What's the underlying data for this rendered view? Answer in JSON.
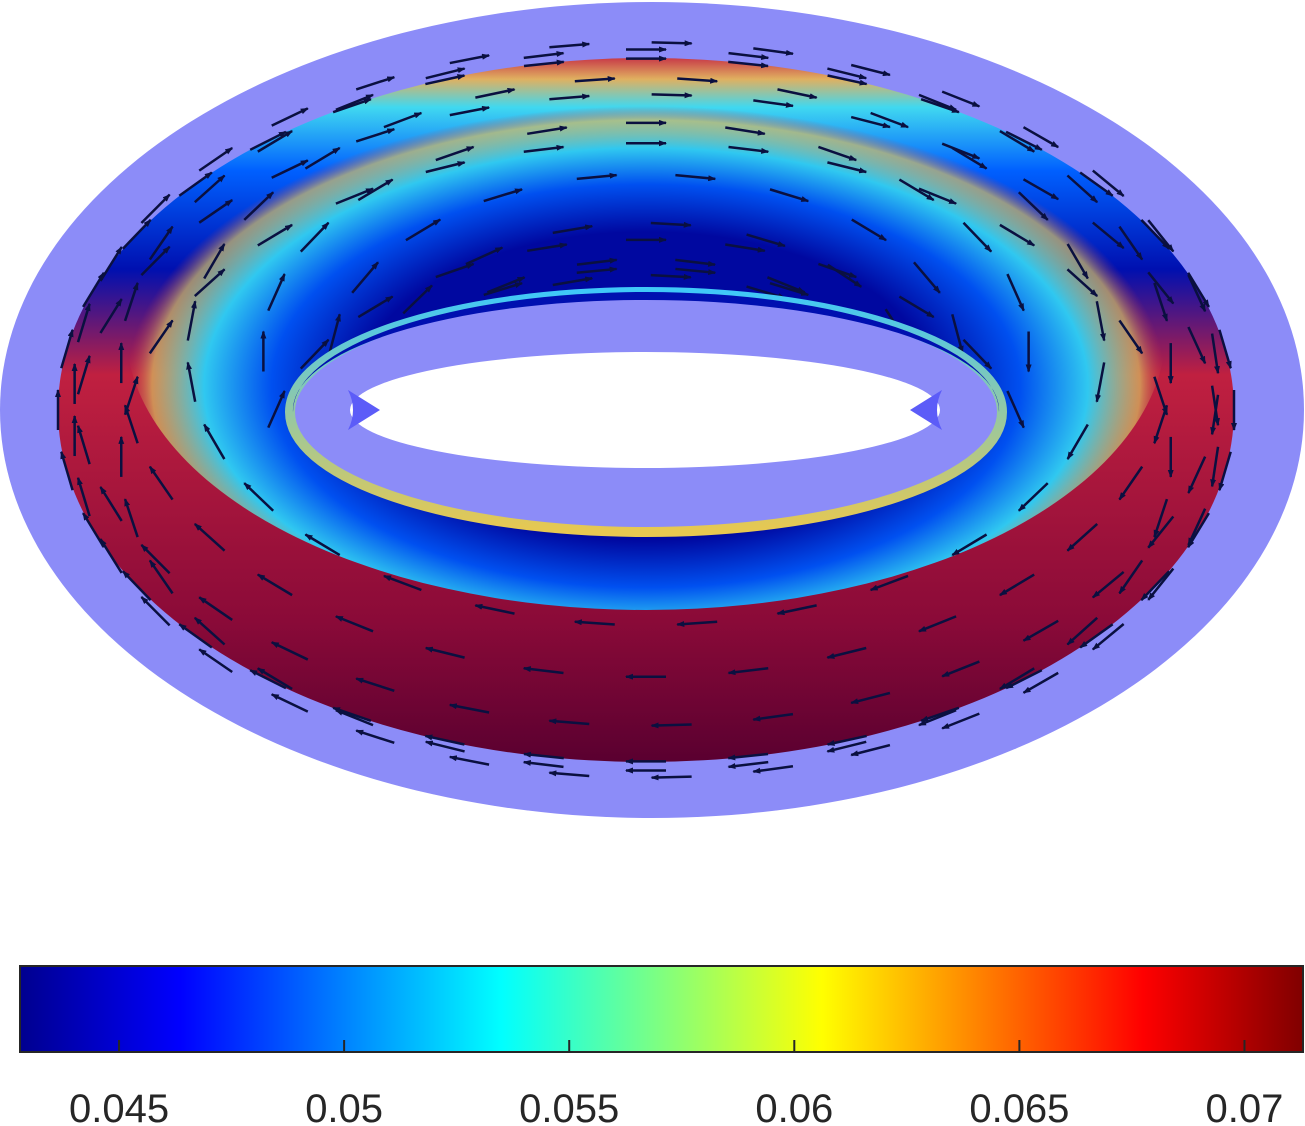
{
  "chart_data": {
    "type": "colorbar",
    "colormap": "jet",
    "clim": [
      0.0428,
      0.0713
    ],
    "ticks": [
      0.045,
      0.05,
      0.055,
      0.06,
      0.065,
      0.07
    ]
  }
}
